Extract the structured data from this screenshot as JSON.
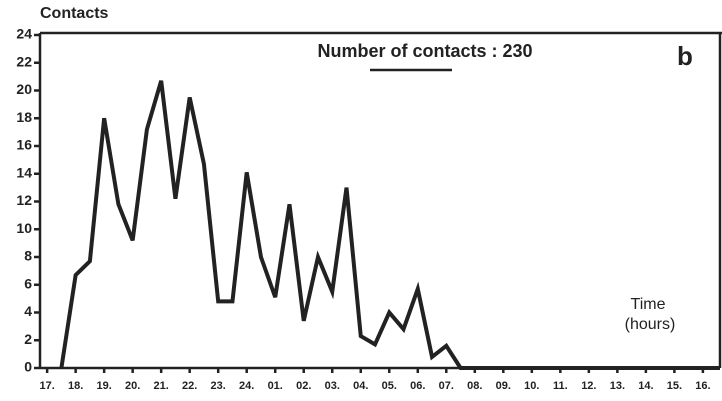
{
  "chart_data": {
    "type": "line",
    "y_label": "Contacts",
    "title": "Number of contacts : 230",
    "panel_label": "b",
    "x_label": [
      "Time",
      "(hours)"
    ],
    "x": [
      0.5,
      1,
      1.5,
      2,
      2.5,
      3,
      3.5,
      4,
      4.5,
      5,
      5.5,
      6,
      6.5,
      7,
      7.5,
      8,
      8.5,
      9,
      9.5,
      10,
      10.5,
      11,
      11.5,
      12,
      12.5,
      13,
      13.5,
      14,
      14.5,
      23.6
    ],
    "series": [
      {
        "color": "#222222",
        "values": [
          0,
          6.7,
          7.7,
          18,
          11.8,
          9.2,
          17.2,
          20.7,
          12.2,
          19.5,
          14.7,
          4.8,
          4.8,
          14.1,
          8,
          5.1,
          11.8,
          3.4,
          8,
          5.5,
          13,
          2.3,
          1.7,
          4,
          2.8,
          5.7,
          0.8,
          1.6,
          0,
          0
        ]
      }
    ],
    "xlim": [
      -0.25,
      23.6
    ],
    "xticks": [
      {
        "value": 0,
        "label": "17."
      },
      {
        "value": 1,
        "label": "18."
      },
      {
        "value": 2,
        "label": "19."
      },
      {
        "value": 3,
        "label": "20."
      },
      {
        "value": 4,
        "label": "21."
      },
      {
        "value": 5,
        "label": "22."
      },
      {
        "value": 6,
        "label": "23."
      },
      {
        "value": 7,
        "label": "24."
      },
      {
        "value": 8,
        "label": "01."
      },
      {
        "value": 9,
        "label": "02."
      },
      {
        "value": 10,
        "label": "03."
      },
      {
        "value": 11,
        "label": "04."
      },
      {
        "value": 12,
        "label": "05."
      },
      {
        "value": 13,
        "label": "06."
      },
      {
        "value": 14,
        "label": "07."
      },
      {
        "value": 15,
        "label": "08."
      },
      {
        "value": 16,
        "label": "09."
      },
      {
        "value": 17,
        "label": "10."
      },
      {
        "value": 18,
        "label": "11."
      },
      {
        "value": 19,
        "label": "12."
      },
      {
        "value": 20,
        "label": "13."
      },
      {
        "value": 21,
        "label": "14."
      },
      {
        "value": 22,
        "label": "15."
      },
      {
        "value": 23,
        "label": "16."
      }
    ],
    "ylim": [
      0,
      24
    ],
    "yticks": [
      0,
      2,
      4,
      6,
      8,
      10,
      12,
      14,
      16,
      18,
      20,
      22,
      24
    ]
  }
}
